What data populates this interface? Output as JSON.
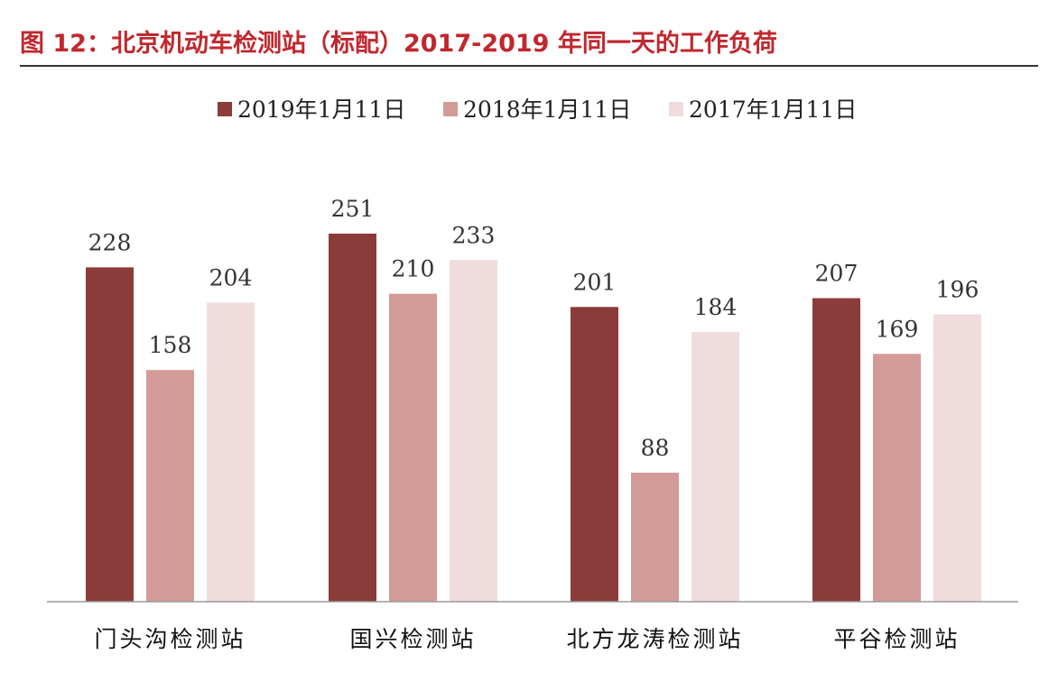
{
  "figure": {
    "title": "图 12：北京机动车检测站（标配）2017-2019 年同一天的工作负荷"
  },
  "chart_data": {
    "type": "bar",
    "categories": [
      "门头沟检测站",
      "国兴检测站",
      "北方龙涛检测站",
      "平谷检测站"
    ],
    "series": [
      {
        "name": "2019年1月11日",
        "values": [
          228,
          251,
          201,
          207
        ],
        "color": "#8b3c3a"
      },
      {
        "name": "2018年1月11日",
        "values": [
          158,
          210,
          88,
          169
        ],
        "color": "#d39b97"
      },
      {
        "name": "2017年1月11日",
        "values": [
          204,
          233,
          184,
          196
        ],
        "color": "#f0dcdc"
      }
    ],
    "title": "",
    "xlabel": "",
    "ylabel": "",
    "ylim": [
      0,
      251
    ],
    "grid": false,
    "data_labels": true,
    "legend_position": "top-center"
  }
}
